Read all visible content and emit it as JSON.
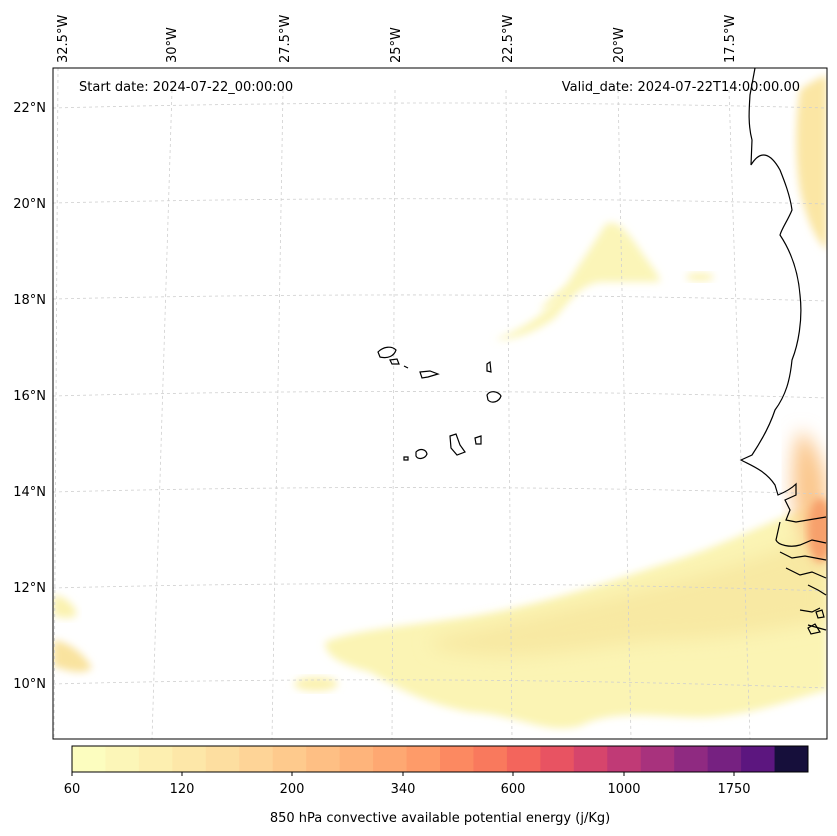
{
  "map": {
    "start_date": "Start date: 2024-07-22_00:00:00",
    "valid_date": "Valid_date: 2024-07-22T14:00:00.00",
    "lon_labels": [
      "32.5°W",
      "30°W",
      "27.5°W",
      "25°W",
      "22.5°W",
      "20°W",
      "17.5°W"
    ],
    "lat_labels": [
      "22°N",
      "20°N",
      "18°N",
      "16°N",
      "14°N",
      "12°N",
      "10°N"
    ]
  },
  "colorbar": {
    "title": "850 hPa convective available potential energy (j/Kg)",
    "tick_labels": [
      "60",
      "120",
      "200",
      "340",
      "600",
      "1000",
      "1750"
    ],
    "colors": [
      "#fcfdbf",
      "#fcf6b8",
      "#fdefb0",
      "#fde7a8",
      "#fddea0",
      "#fed497",
      "#feca8d",
      "#febf84",
      "#feb47b",
      "#fea872",
      "#fe9b69",
      "#fc8961",
      "#f9795d",
      "#f3655c",
      "#e85362",
      "#d6456c",
      "#c03a76",
      "#a8327d",
      "#8f2a81",
      "#762181",
      "#5c167f",
      "#160f3b"
    ],
    "under_color": "#fcfdbf"
  },
  "legend_colors": {
    "land_outline": "#000000",
    "gridline": "#cfcfcf"
  }
}
